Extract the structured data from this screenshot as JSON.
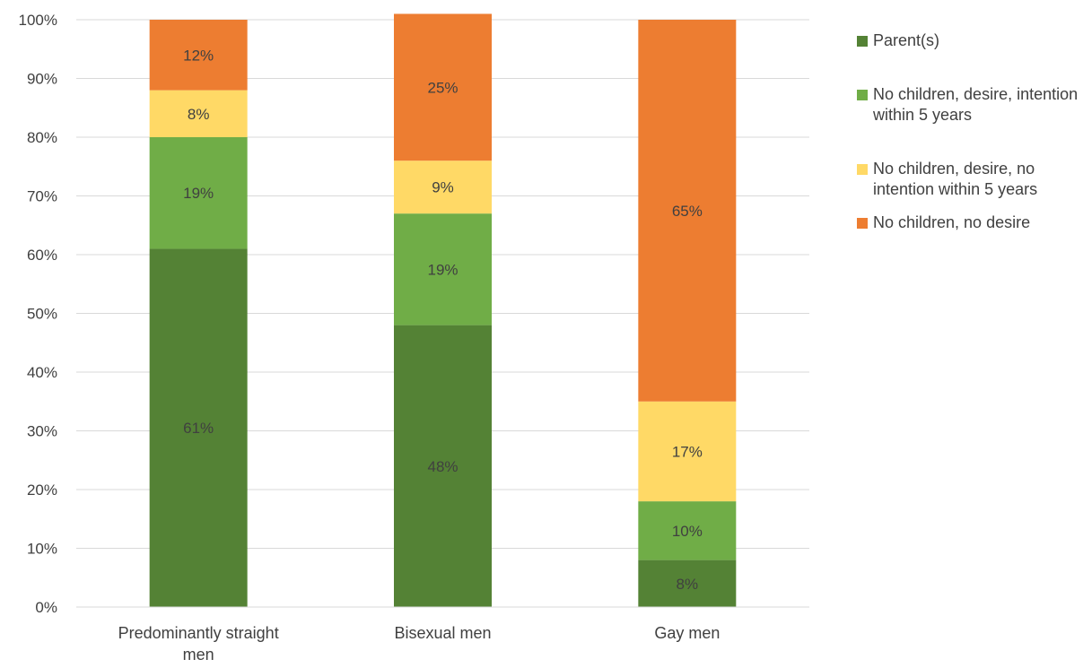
{
  "chart_data": {
    "type": "bar",
    "stacked": true,
    "categories": [
      "Predominantly straight men",
      "Bisexual men",
      "Gay men"
    ],
    "series": [
      {
        "name": "Parent(s)",
        "color": "#548235",
        "values": [
          61,
          48,
          8
        ],
        "labels": [
          "61%",
          "48%",
          "8%"
        ]
      },
      {
        "name": "No children, desire, intention within 5 years",
        "color": "#70ad47",
        "values": [
          19,
          19,
          10
        ],
        "labels": [
          "19%",
          "19%",
          "10%"
        ]
      },
      {
        "name": "No children, desire, no intention within 5 years",
        "color": "#ffd966",
        "values": [
          8,
          9,
          17
        ],
        "labels": [
          "8%",
          "9%",
          "17%"
        ]
      },
      {
        "name": "No children, no desire",
        "color": "#ed7d31",
        "values": [
          12,
          25,
          65
        ],
        "labels": [
          "12%",
          "25%",
          "65%"
        ]
      }
    ],
    "ylim": [
      0,
      100
    ],
    "yticks": [
      "0%",
      "10%",
      "20%",
      "30%",
      "40%",
      "50%",
      "60%",
      "70%",
      "80%",
      "90%",
      "100%"
    ],
    "grid": true,
    "gridColor": "#d9d9d9",
    "legend": "right"
  }
}
